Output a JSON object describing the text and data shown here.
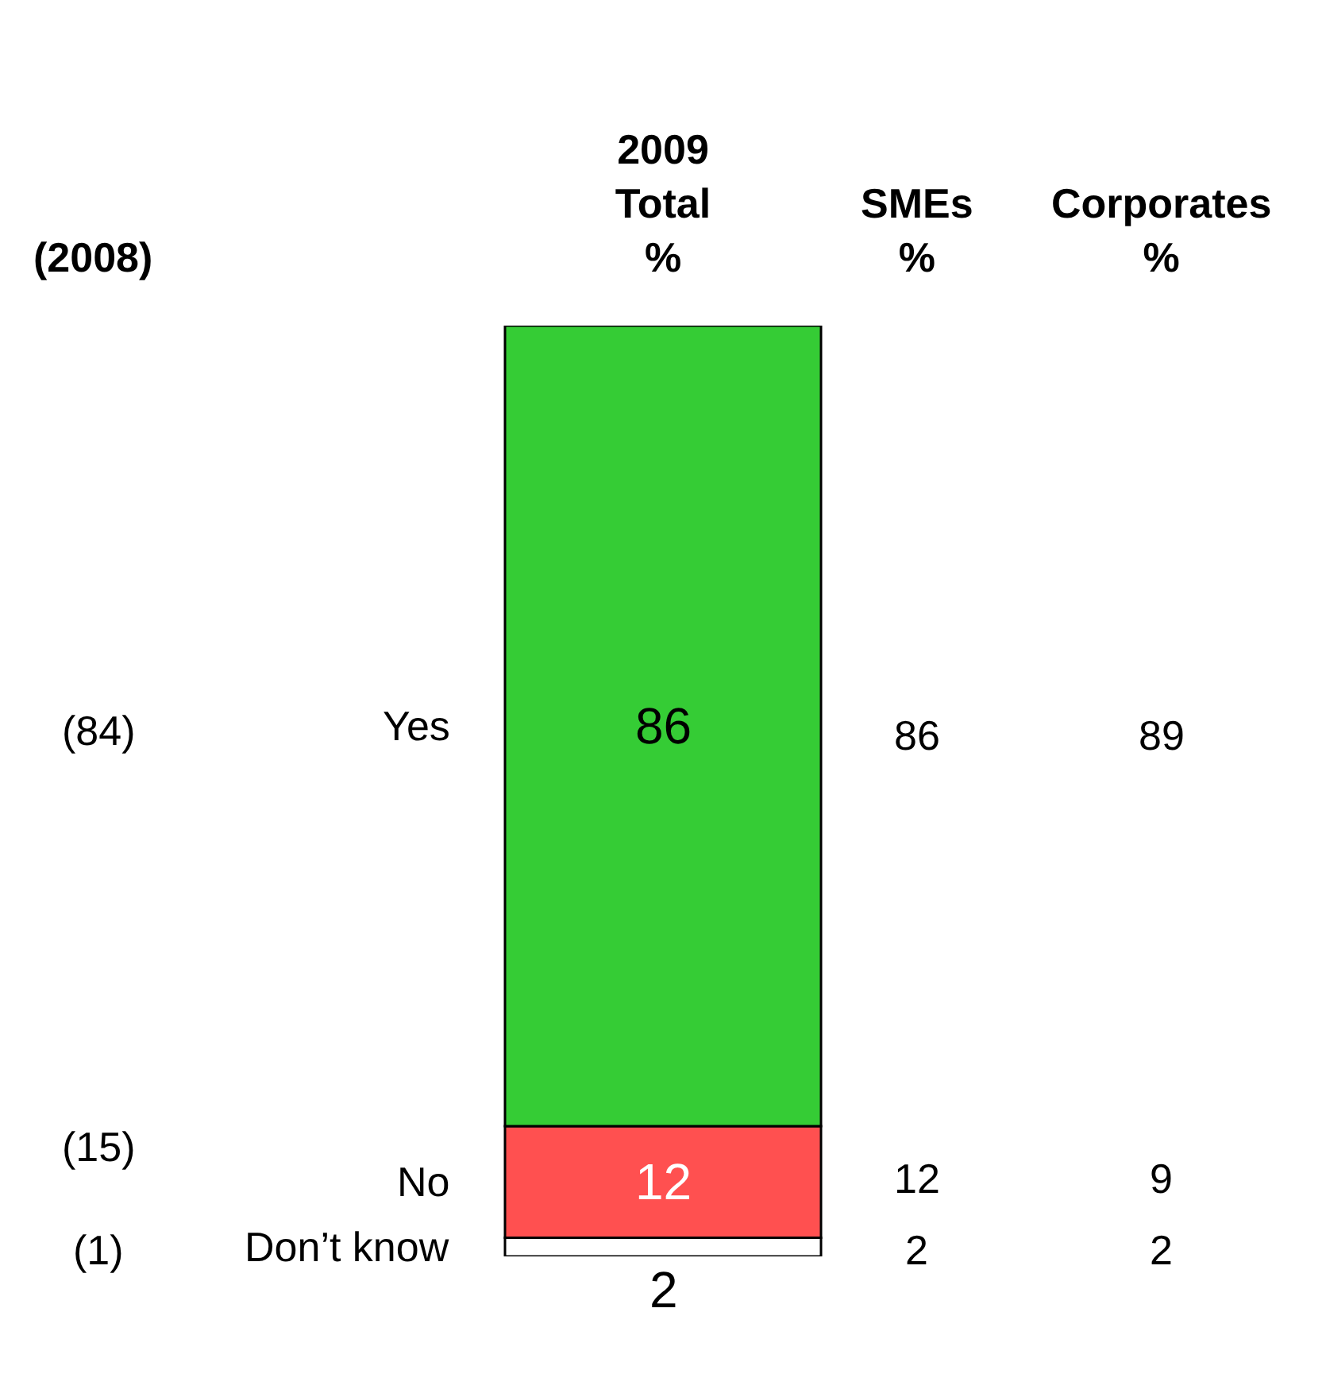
{
  "chart_data": {
    "type": "bar",
    "stacked": true,
    "categories": [
      "2009\nTotal\n%"
    ],
    "series": [
      {
        "name": "Don’t know",
        "color": "#ffffff",
        "values": [
          2
        ]
      },
      {
        "name": "No",
        "color": "#ff5050",
        "values": [
          12
        ]
      },
      {
        "name": "Yes",
        "color": "#35cc35",
        "values": [
          86
        ]
      }
    ],
    "data_labels": true,
    "legend": false,
    "annotations": [
      "(2008)",
      "(84)",
      "(15)",
      "(1)",
      "SMEs\n%",
      "86",
      "12",
      "2",
      "Corporates\n%",
      "89",
      "9",
      "2"
    ]
  }
}
